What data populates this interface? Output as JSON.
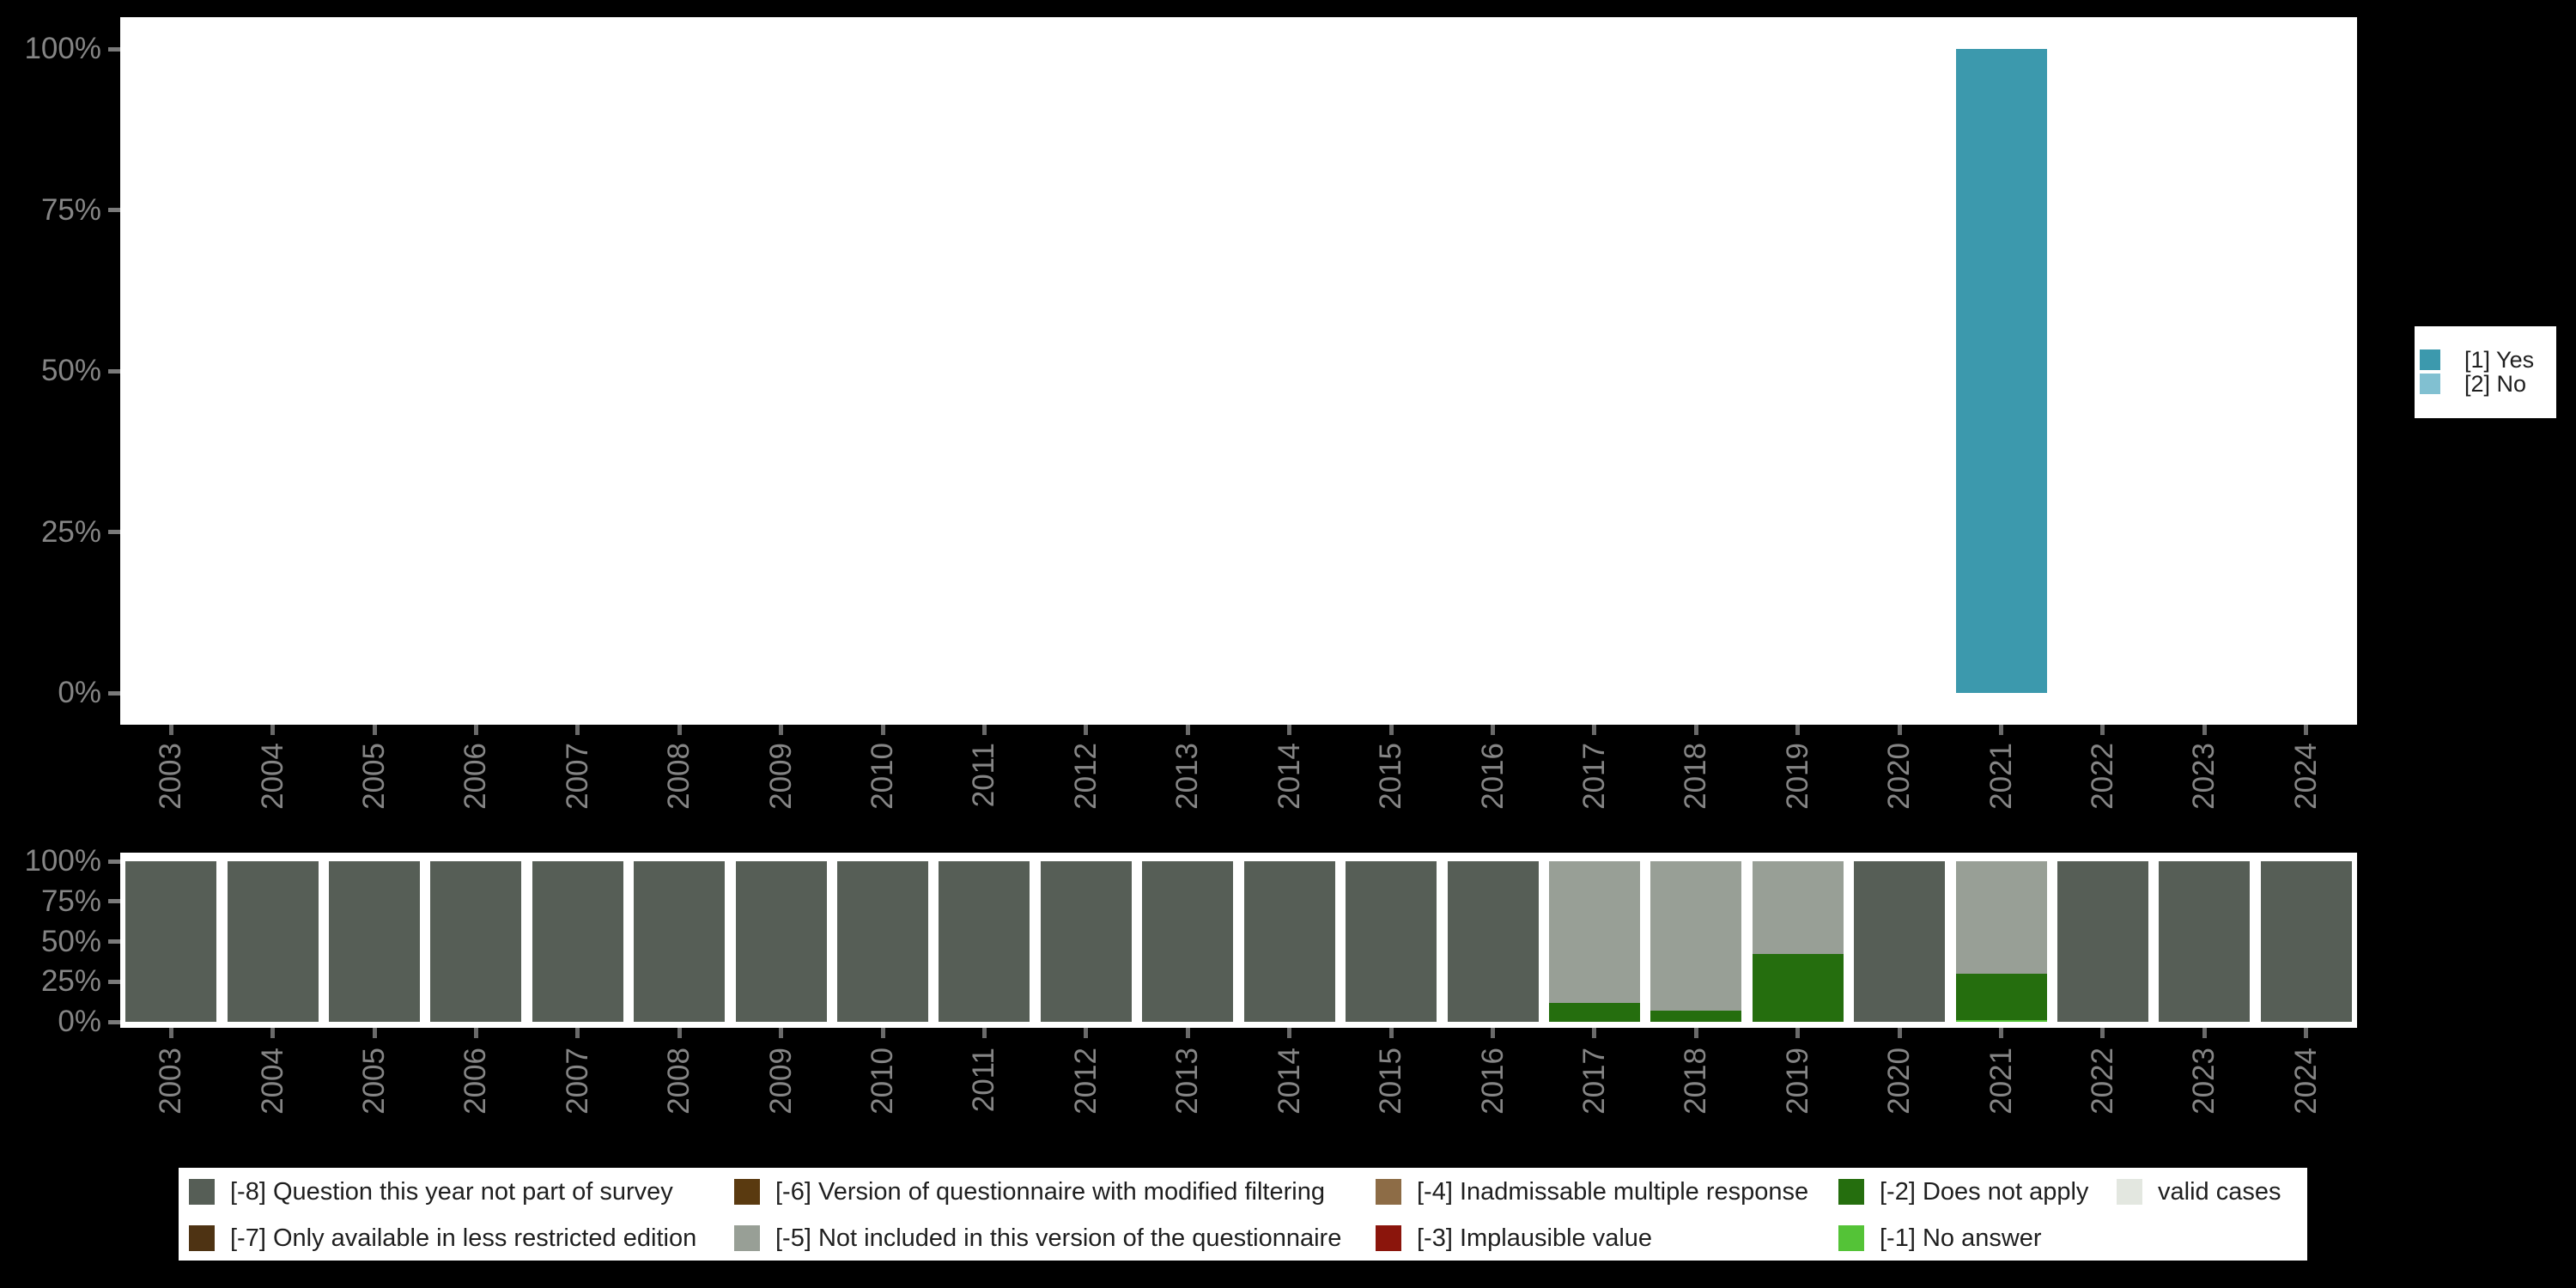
{
  "colors": {
    "background": "#000000",
    "plot_background": "#ffffff",
    "axis_text": "#858585",
    "tick": "#6a6a6a",
    "legend_text": "#1f1f1f"
  },
  "legends": {
    "right": {
      "items": [
        {
          "label": "[1] Yes",
          "color": "#3c99ad"
        },
        {
          "label": "[2] No",
          "color": "#81c0d1"
        }
      ]
    },
    "bottom": {
      "columns": [
        [
          {
            "label": "[-8] Question this year not part of survey",
            "color": "#565e56"
          },
          {
            "label": "[-7] Only available in less restricted edition",
            "color": "#4e3313"
          }
        ],
        [
          {
            "label": "[-6] Version of questionnaire with modified filtering",
            "color": "#5a3a10"
          },
          {
            "label": "[-5] Not included in this version of the questionnaire",
            "color": "#989f96"
          }
        ],
        [
          {
            "label": "[-4] Inadmissable multiple response",
            "color": "#8d6c46"
          },
          {
            "label": "[-3] Implausible value",
            "color": "#8b150c"
          }
        ],
        [
          {
            "label": "[-2] Does not apply",
            "color": "#256e0e"
          },
          {
            "label": "[-1] No answer",
            "color": "#54c337"
          }
        ],
        [
          {
            "label": "valid cases",
            "color": "#e3e7e0"
          }
        ]
      ]
    }
  },
  "chart_data": [
    {
      "id": "value-distribution-by-year",
      "type": "bar",
      "stacked": true,
      "title": "",
      "xlabel": "",
      "ylabel": "",
      "ylim": [
        0,
        100
      ],
      "yticks": [
        "0%",
        "25%",
        "50%",
        "75%",
        "100%"
      ],
      "legend_position": "right",
      "categories": [
        "2003",
        "2004",
        "2005",
        "2006",
        "2007",
        "2008",
        "2009",
        "2010",
        "2011",
        "2012",
        "2013",
        "2014",
        "2015",
        "2016",
        "2017",
        "2018",
        "2019",
        "2020",
        "2021",
        "2022",
        "2023",
        "2024"
      ],
      "series": [
        {
          "name": "[1] Yes",
          "color": "#3c99ad",
          "values": [
            0,
            0,
            0,
            0,
            0,
            0,
            0,
            0,
            0,
            0,
            0,
            0,
            0,
            0,
            0,
            0,
            0,
            0,
            100,
            0,
            0,
            0
          ]
        },
        {
          "name": "[2] No",
          "color": "#81c0d1",
          "values": [
            0,
            0,
            0,
            0,
            0,
            0,
            0,
            0,
            0,
            0,
            0,
            0,
            0,
            0,
            0,
            0,
            0,
            0,
            0,
            0,
            0,
            0
          ]
        }
      ]
    },
    {
      "id": "missing-values-by-year",
      "type": "bar",
      "stacked": true,
      "title": "",
      "xlabel": "",
      "ylabel": "",
      "ylim": [
        0,
        100
      ],
      "yticks": [
        "0%",
        "25%",
        "50%",
        "75%",
        "100%"
      ],
      "legend_position": "bottom",
      "stack_order": "bottom-to-top",
      "categories": [
        "2003",
        "2004",
        "2005",
        "2006",
        "2007",
        "2008",
        "2009",
        "2010",
        "2011",
        "2012",
        "2013",
        "2014",
        "2015",
        "2016",
        "2017",
        "2018",
        "2019",
        "2020",
        "2021",
        "2022",
        "2023",
        "2024"
      ],
      "series": [
        {
          "name": "valid cases",
          "color": "#e3e7e0",
          "values": [
            0,
            0,
            0,
            0,
            0,
            0,
            0,
            0,
            0,
            0,
            0,
            0,
            0,
            0,
            0,
            0,
            0,
            0,
            0,
            0,
            0,
            0
          ]
        },
        {
          "name": "[-1] No answer",
          "color": "#54c337",
          "values": [
            0,
            0,
            0,
            0,
            0,
            0,
            0,
            0,
            0,
            0,
            0,
            0,
            0,
            0,
            0,
            0,
            0,
            0,
            1,
            0,
            0,
            0
          ]
        },
        {
          "name": "[-2] Does not apply",
          "color": "#256e0e",
          "values": [
            0,
            0,
            0,
            0,
            0,
            0,
            0,
            0,
            0,
            0,
            0,
            0,
            0,
            0,
            12,
            7,
            42,
            0,
            29,
            0,
            0,
            0
          ]
        },
        {
          "name": "[-3] Implausible value",
          "color": "#8b150c",
          "values": [
            0,
            0,
            0,
            0,
            0,
            0,
            0,
            0,
            0,
            0,
            0,
            0,
            0,
            0,
            0,
            0,
            0,
            0,
            0,
            0,
            0,
            0
          ]
        },
        {
          "name": "[-4] Inadmissable multiple response",
          "color": "#8d6c46",
          "values": [
            0,
            0,
            0,
            0,
            0,
            0,
            0,
            0,
            0,
            0,
            0,
            0,
            0,
            0,
            0,
            0,
            0,
            0,
            0,
            0,
            0,
            0
          ]
        },
        {
          "name": "[-5] Not included in this version of the questionnaire",
          "color": "#989f96",
          "values": [
            0,
            0,
            0,
            0,
            0,
            0,
            0,
            0,
            0,
            0,
            0,
            0,
            0,
            0,
            88,
            93,
            58,
            0,
            70,
            0,
            0,
            0
          ]
        },
        {
          "name": "[-6] Version of questionnaire with modified filtering",
          "color": "#5a3a10",
          "values": [
            0,
            0,
            0,
            0,
            0,
            0,
            0,
            0,
            0,
            0,
            0,
            0,
            0,
            0,
            0,
            0,
            0,
            0,
            0,
            0,
            0,
            0
          ]
        },
        {
          "name": "[-7] Only available in less restricted edition",
          "color": "#4e3313",
          "values": [
            0,
            0,
            0,
            0,
            0,
            0,
            0,
            0,
            0,
            0,
            0,
            0,
            0,
            0,
            0,
            0,
            0,
            0,
            0,
            0,
            0,
            0
          ]
        },
        {
          "name": "[-8] Question this year not part of survey",
          "color": "#565e56",
          "values": [
            100,
            100,
            100,
            100,
            100,
            100,
            100,
            100,
            100,
            100,
            100,
            100,
            100,
            100,
            0,
            0,
            0,
            100,
            0,
            100,
            100,
            100
          ]
        }
      ]
    }
  ]
}
